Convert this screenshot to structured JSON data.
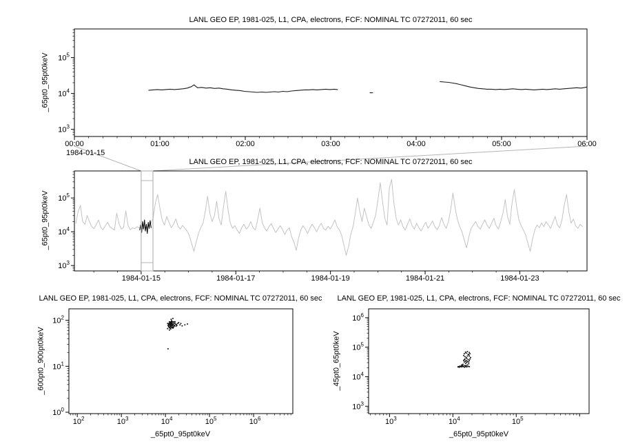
{
  "window": {
    "background": "#ffffff"
  },
  "chart_data": [
    {
      "id": "top",
      "type": "line",
      "title": "LANL GEO EP, 1981-025, L1, CPA, electrons, FCF: NOMINAL TC 07272011, 60 sec",
      "ylabel": "_65pt0_95pt0keV",
      "line_color": "#1a1a1a",
      "x_axis": {
        "kind": "linear",
        "unit": "hours of 1984-01-15",
        "range": [
          0,
          6
        ],
        "minor_step": 0.166667,
        "date_label": "1984-01-15",
        "ticks": [
          {
            "v": 0,
            "label": "00:00"
          },
          {
            "v": 1,
            "label": "01:00"
          },
          {
            "v": 2,
            "label": "02:00"
          },
          {
            "v": 3,
            "label": "03:00"
          },
          {
            "v": 4,
            "label": "04:00"
          },
          {
            "v": 5,
            "label": "05:00"
          },
          {
            "v": 6,
            "label": "06:00"
          }
        ]
      },
      "y_axis": {
        "kind": "log",
        "range_log10": [
          2.8,
          5.8
        ],
        "major_decades": [
          3,
          4,
          5
        ]
      },
      "segments": [
        {
          "x": [
            0.87,
            0.92,
            0.97,
            1.02,
            1.07,
            1.12,
            1.17,
            1.22,
            1.27,
            1.32,
            1.37,
            1.4,
            1.44,
            1.49,
            1.54,
            1.59,
            1.64,
            1.69,
            1.74,
            1.79,
            1.84,
            1.89,
            1.94,
            1.99,
            2.04,
            2.09,
            2.14,
            2.19,
            2.24,
            2.29,
            2.34,
            2.39,
            2.44,
            2.49,
            2.54,
            2.59,
            2.64,
            2.69,
            2.74,
            2.79,
            2.84,
            2.89,
            2.94,
            2.99,
            3.04,
            3.08
          ],
          "y_log10": [
            4.09,
            4.1,
            4.11,
            4.1,
            4.11,
            4.12,
            4.11,
            4.12,
            4.13,
            4.15,
            4.19,
            4.24,
            4.16,
            4.17,
            4.15,
            4.16,
            4.14,
            4.15,
            4.13,
            4.12,
            4.1,
            4.09,
            4.08,
            4.06,
            4.05,
            4.04,
            4.03,
            4.04,
            4.03,
            4.04,
            4.05,
            4.04,
            4.06,
            4.05,
            4.07,
            4.08,
            4.09,
            4.1,
            4.1,
            4.11,
            4.1,
            4.11,
            4.12,
            4.11,
            4.12,
            4.11
          ]
        },
        {
          "x": [
            3.46,
            3.49
          ],
          "y_log10": [
            4.02,
            4.02
          ]
        },
        {
          "x": [
            4.28,
            4.33,
            4.38,
            4.43,
            4.48,
            4.53,
            4.58,
            4.63,
            4.68,
            4.73,
            4.78,
            4.83,
            4.88,
            4.93,
            4.98,
            5.03,
            5.08,
            5.13,
            5.18,
            5.23,
            5.28,
            5.33,
            5.38,
            5.43,
            5.48,
            5.53,
            5.58,
            5.63,
            5.68,
            5.73,
            5.78,
            5.83,
            5.88,
            5.93,
            5.98,
            6.0
          ],
          "y_log10": [
            4.33,
            4.32,
            4.31,
            4.29,
            4.27,
            4.24,
            4.21,
            4.18,
            4.16,
            4.14,
            4.13,
            4.12,
            4.12,
            4.11,
            4.12,
            4.11,
            4.12,
            4.13,
            4.12,
            4.11,
            4.12,
            4.11,
            4.1,
            4.11,
            4.12,
            4.11,
            4.12,
            4.13,
            4.12,
            4.13,
            4.14,
            4.15,
            4.16,
            4.15,
            4.17,
            4.18
          ]
        }
      ]
    },
    {
      "id": "mid",
      "type": "line",
      "title": "LANL GEO EP, 1981-025, L1, CPA, electrons, FCF: NOMINAL TC 07272011, 60 sec",
      "ylabel": "_65pt0_95pt0keV",
      "line_color": "#c3c3c3",
      "x_axis": {
        "kind": "linear",
        "unit": "day of 1984-01",
        "range": [
          13.59,
          24.42
        ],
        "minor_step": 0.5,
        "ticks": [
          {
            "v": 15,
            "label": "1984-01-15"
          },
          {
            "v": 17,
            "label": "1984-01-17"
          },
          {
            "v": 19,
            "label": "1984-01-19"
          },
          {
            "v": 21,
            "label": "1984-01-21"
          },
          {
            "v": 23,
            "label": "1984-01-23"
          }
        ]
      },
      "y_axis": {
        "kind": "log",
        "range_log10": [
          2.84,
          5.8
        ],
        "major_decades": [
          3,
          4,
          5
        ]
      },
      "series": {
        "x0": 13.62,
        "dx": 0.048,
        "y_log10": [
          4.25,
          4.6,
          4.78,
          4.3,
          4.22,
          4.48,
          4.3,
          4.15,
          4.09,
          4.21,
          4.35,
          4.12,
          4.06,
          4.18,
          4.28,
          4.14,
          4.1,
          4.05,
          4.55,
          4.24,
          4.08,
          4.13,
          4.62,
          4.18,
          4.06,
          4.12,
          4.09,
          4.15,
          4.11,
          4.08,
          4.13,
          4.1,
          4.18,
          4.25,
          4.4,
          4.85,
          5.1,
          4.7,
          4.35,
          4.2,
          4.45,
          4.28,
          4.12,
          4.22,
          4.38,
          4.16,
          4.08,
          4.19,
          4.1,
          4.02,
          3.88,
          3.65,
          3.42,
          3.7,
          3.95,
          4.12,
          4.25,
          4.6,
          5.05,
          4.55,
          4.3,
          4.48,
          4.9,
          4.4,
          4.2,
          4.75,
          5.2,
          4.65,
          4.25,
          4.1,
          4.18,
          4.05,
          3.95,
          4.12,
          4.22,
          4.08,
          4.15,
          4.3,
          4.12,
          4.05,
          4.35,
          4.7,
          4.28,
          4.12,
          4.02,
          4.15,
          4.24,
          4.1,
          3.98,
          4.08,
          4.18,
          4.06,
          3.92,
          4.05,
          4.12,
          3.85,
          3.7,
          3.45,
          3.8,
          4.05,
          4.18,
          4.08,
          3.95,
          4.1,
          4.22,
          4.12,
          4.0,
          4.14,
          4.25,
          4.1,
          4.05,
          4.16,
          4.08,
          4.2,
          4.35,
          4.15,
          4.05,
          3.9,
          3.6,
          3.3,
          3.55,
          3.92,
          4.15,
          4.55,
          5.0,
          4.6,
          4.3,
          4.7,
          4.45,
          4.2,
          4.1,
          4.28,
          4.5,
          4.95,
          5.45,
          4.9,
          4.4,
          4.2,
          5.3,
          5.55,
          4.85,
          4.4,
          4.2,
          4.35,
          4.15,
          4.05,
          4.22,
          4.38,
          4.18,
          4.08,
          4.25,
          4.12,
          4.02,
          4.16,
          4.28,
          4.1,
          4.2,
          4.32,
          4.15,
          4.06,
          4.18,
          4.42,
          4.22,
          4.1,
          4.3,
          4.65,
          5.15,
          4.7,
          4.35,
          4.15,
          4.0,
          3.75,
          3.52,
          3.85,
          4.1,
          4.2,
          4.3,
          4.15,
          4.08,
          4.22,
          4.35,
          4.2,
          4.1,
          4.25,
          4.4,
          4.18,
          4.08,
          4.3,
          4.55,
          4.95,
          4.45,
          4.22,
          4.85,
          5.25,
          4.75,
          4.35,
          4.18,
          4.05,
          3.9,
          3.65,
          3.42,
          3.78,
          4.05,
          4.2,
          4.12,
          4.26,
          4.15,
          4.3,
          4.2,
          4.1,
          4.28,
          4.45,
          4.2,
          4.12,
          4.35,
          4.8,
          5.1,
          4.6,
          4.25,
          4.38,
          4.18,
          4.1,
          4.22,
          4.15
        ]
      },
      "highlight": {
        "color": "#111111",
        "x": [
          14.97,
          14.99,
          15.01,
          15.03,
          15.05,
          15.07,
          15.09,
          15.11,
          15.13,
          15.15,
          15.17,
          15.19,
          15.21
        ],
        "y_log10": [
          4.05,
          4.2,
          3.98,
          4.3,
          4.08,
          4.35,
          4.02,
          4.22,
          3.95,
          4.28,
          4.1,
          4.33,
          4.12
        ]
      },
      "zoom_box": {
        "x0": 15.0,
        "x1": 15.25,
        "color": "#b5b5b5"
      }
    },
    {
      "id": "bl",
      "type": "scatter",
      "title": "LANL GEO EP, 1981-025, L1, CPA, electrons, FCF: NOMINAL TC 07272011, 60 sec",
      "ylabel": "_600pt0_900pt0keV",
      "xlabel": "_65pt0_95pt0keV",
      "point_color": "#111111",
      "x_axis": {
        "kind": "log",
        "range_log10": [
          1.81,
          6.89
        ],
        "major_decades": [
          2,
          3,
          4,
          5,
          6
        ]
      },
      "y_axis": {
        "kind": "log",
        "range_log10": [
          -0.03,
          2.25
        ],
        "major_decades": [
          0,
          1,
          2
        ]
      },
      "points": [
        [
          4.05,
          1.82
        ],
        [
          4.08,
          1.9
        ],
        [
          4.1,
          1.95
        ],
        [
          4.12,
          1.88
        ],
        [
          4.14,
          1.92
        ],
        [
          4.16,
          1.85
        ],
        [
          4.09,
          1.79
        ],
        [
          4.11,
          1.91
        ],
        [
          4.13,
          1.97
        ],
        [
          4.15,
          1.89
        ],
        [
          4.07,
          1.86
        ],
        [
          4.12,
          1.94
        ],
        [
          4.18,
          1.9
        ],
        [
          4.2,
          1.93
        ],
        [
          4.1,
          1.83
        ],
        [
          4.13,
          1.87
        ],
        [
          4.16,
          1.96
        ],
        [
          4.08,
          1.93
        ],
        [
          4.11,
          1.85
        ],
        [
          4.14,
          1.99
        ],
        [
          4.17,
          1.91
        ],
        [
          4.19,
          1.86
        ],
        [
          4.06,
          1.89
        ],
        [
          4.09,
          1.97
        ],
        [
          4.12,
          1.81
        ],
        [
          4.15,
          1.93
        ],
        [
          4.18,
          1.97
        ],
        [
          4.21,
          1.89
        ],
        [
          4.23,
          1.92
        ],
        [
          4.1,
          1.9
        ],
        [
          4.13,
          1.93
        ],
        [
          4.07,
          1.92
        ],
        [
          4.16,
          1.88
        ],
        [
          4.11,
          1.96
        ],
        [
          4.14,
          1.84
        ],
        [
          4.19,
          1.94
        ],
        [
          4.22,
          1.96
        ],
        [
          4.25,
          1.91
        ],
        [
          4.28,
          1.93
        ],
        [
          4.12,
          1.86
        ],
        [
          4.09,
          1.84
        ],
        [
          4.15,
          1.97
        ],
        [
          4.17,
          1.83
        ],
        [
          4.2,
          1.88
        ],
        [
          4.05,
          1.93
        ],
        [
          4.24,
          1.87
        ],
        [
          4.3,
          1.95
        ],
        [
          4.33,
          1.9
        ],
        [
          4.13,
          1.9
        ],
        [
          4.11,
          1.88
        ],
        [
          4.16,
          1.92
        ],
        [
          4.18,
          1.85
        ],
        [
          4.08,
          1.87
        ],
        [
          4.21,
          1.97
        ],
        [
          4.26,
          1.89
        ],
        [
          4.14,
          1.95
        ],
        [
          4.1,
          1.93
        ],
        [
          4.12,
          1.91
        ],
        [
          4.35,
          1.93
        ],
        [
          4.38,
          1.88
        ],
        [
          4.13,
          2.02
        ],
        [
          4.17,
          2.04
        ],
        [
          4.44,
          1.9
        ],
        [
          4.5,
          1.92
        ],
        [
          4.06,
          1.38
        ]
      ]
    },
    {
      "id": "br",
      "type": "scatter",
      "title": "LANL GEO EP, 1981-025, L1, CPA, electrons, FCF: NOMINAL TC 07272011, 60 sec",
      "ylabel": "_45pt0_65pt0keV",
      "xlabel": "_65pt0_95pt0keV",
      "point_color": "#111111",
      "x_axis": {
        "kind": "log",
        "range_log10": [
          2.67,
          6.15
        ],
        "major_decades": [
          3,
          4,
          5
        ]
      },
      "y_axis": {
        "kind": "log",
        "range_log10": [
          2.75,
          6.3
        ],
        "major_decades": [
          3,
          4,
          5,
          6
        ]
      },
      "points": [
        [
          4.08,
          4.33
        ],
        [
          4.1,
          4.32
        ],
        [
          4.12,
          4.34
        ],
        [
          4.14,
          4.33
        ],
        [
          4.16,
          4.35
        ],
        [
          4.18,
          4.32
        ],
        [
          4.2,
          4.34
        ],
        [
          4.22,
          4.33
        ],
        [
          4.24,
          4.35
        ],
        [
          4.26,
          4.34
        ],
        [
          4.13,
          4.36
        ],
        [
          4.15,
          4.38
        ],
        [
          4.17,
          4.36
        ],
        [
          4.19,
          4.38
        ],
        [
          4.21,
          4.37
        ],
        [
          4.23,
          4.4
        ],
        [
          4.2,
          4.45
        ],
        [
          4.18,
          4.5
        ],
        [
          4.17,
          4.55
        ],
        [
          4.19,
          4.6
        ],
        [
          4.21,
          4.65
        ],
        [
          4.23,
          4.7
        ],
        [
          4.25,
          4.74
        ],
        [
          4.27,
          4.78
        ],
        [
          4.26,
          4.82
        ],
        [
          4.23,
          4.85
        ],
        [
          4.2,
          4.83
        ],
        [
          4.18,
          4.78
        ],
        [
          4.17,
          4.72
        ],
        [
          4.19,
          4.68
        ],
        [
          4.22,
          4.62
        ],
        [
          4.24,
          4.58
        ],
        [
          4.26,
          4.55
        ],
        [
          4.25,
          4.5
        ],
        [
          4.22,
          4.48
        ],
        [
          4.2,
          4.52
        ],
        [
          4.18,
          4.57
        ],
        [
          4.21,
          4.55
        ],
        [
          4.23,
          4.52
        ],
        [
          4.16,
          4.42
        ],
        [
          4.14,
          4.4
        ],
        [
          4.25,
          4.44
        ],
        [
          4.27,
          4.6
        ],
        [
          4.28,
          4.65
        ],
        [
          4.24,
          4.76
        ],
        [
          4.21,
          4.8
        ],
        [
          4.15,
          4.35
        ],
        [
          4.11,
          4.36
        ],
        [
          4.09,
          4.34
        ],
        [
          4.26,
          4.7
        ]
      ]
    }
  ]
}
